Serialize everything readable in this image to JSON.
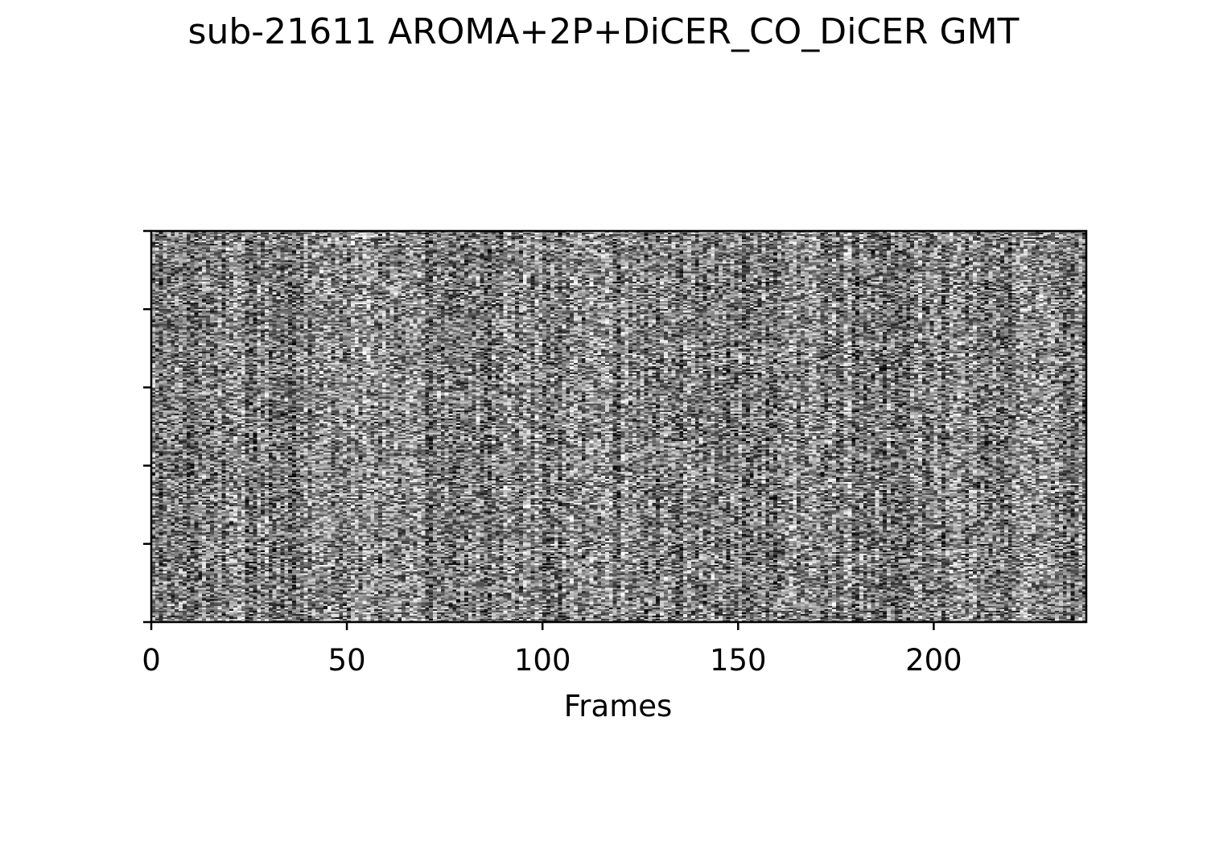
{
  "chart_data": {
    "type": "heatmap",
    "title": "sub-21611 AROMA+2P+DiCER_CO_DiCER GMT",
    "xlabel": "Frames",
    "ylabel": "",
    "xlim": [
      0,
      239
    ],
    "xticks": [
      0,
      50,
      100,
      150,
      200
    ],
    "xtick_labels": [
      "0",
      "50",
      "100",
      "150",
      "200"
    ],
    "ytick_count": 6,
    "ytick_labels": [],
    "colormap": "gray",
    "grid": false,
    "legend": "none",
    "n_frames": 239,
    "n_rows_displayed": 240,
    "pattern": "dense grayscale noise (carpet plot), values not individually readable"
  },
  "colors": {
    "frame": "#000000",
    "background": "#ffffff"
  }
}
